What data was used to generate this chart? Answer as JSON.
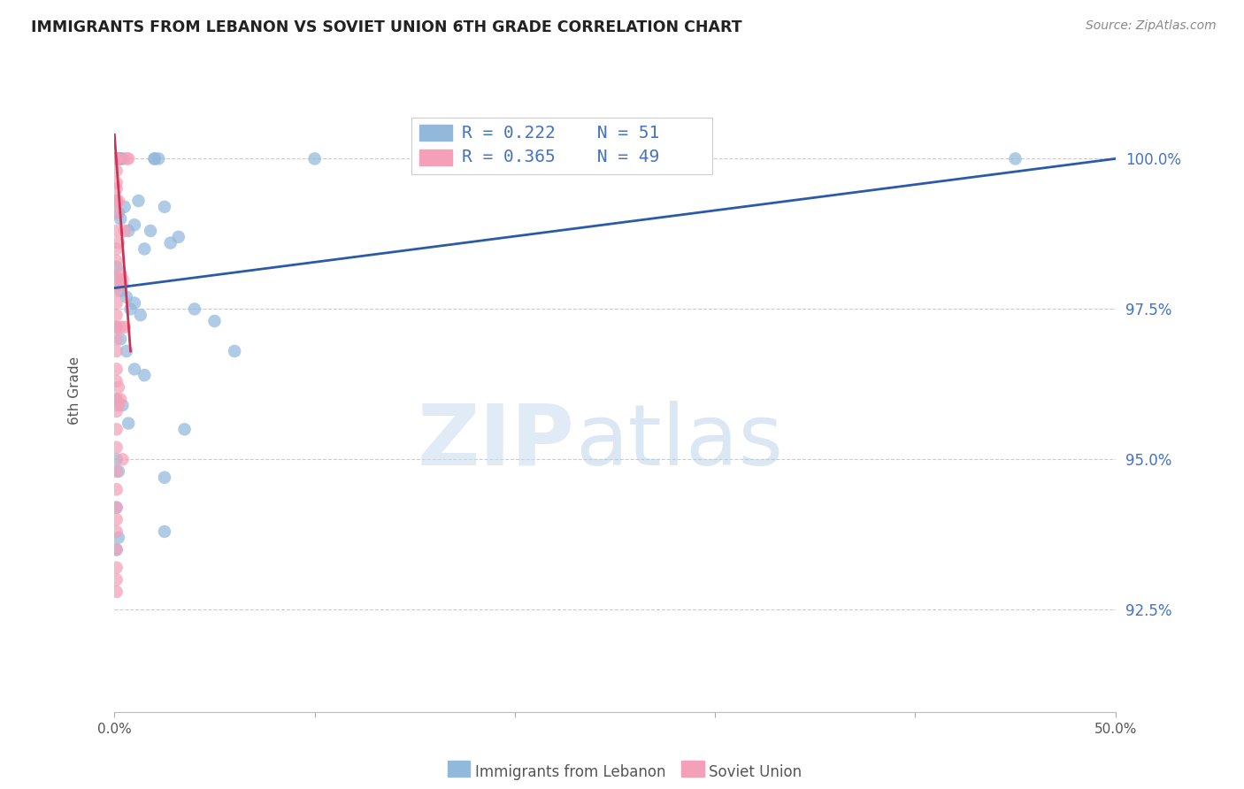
{
  "title": "IMMIGRANTS FROM LEBANON VS SOVIET UNION 6TH GRADE CORRELATION CHART",
  "source": "Source: ZipAtlas.com",
  "ylabel": "6th Grade",
  "yticks": [
    92.5,
    95.0,
    97.5,
    100.0
  ],
  "ytick_labels": [
    "92.5%",
    "95.0%",
    "97.5%",
    "100.0%"
  ],
  "xmin": 0.0,
  "xmax": 0.5,
  "ymin": 90.8,
  "ymax": 101.5,
  "blue_color": "#92B8DC",
  "pink_color": "#F4A0B8",
  "trendline_blue_color": "#2B5BA8",
  "trendline_pink_color": "#CC3355",
  "watermark_zip_color": "#C8DCF0",
  "watermark_atlas_color": "#B0CCE8",
  "legend_blue_text": "R = 0.222    N = 51",
  "legend_pink_text": "R = 0.365    N = 49",
  "legend_r_blue": "R = 0.222",
  "legend_n_blue": "N = 51",
  "legend_r_pink": "R = 0.365",
  "legend_n_pink": "N = 49",
  "blue_scatter_x": [
    0.001,
    0.001,
    0.002,
    0.002,
    0.003,
    0.003,
    0.004,
    0.02,
    0.02,
    0.022,
    0.1,
    0.001,
    0.002,
    0.003,
    0.005,
    0.007,
    0.01,
    0.012,
    0.015,
    0.018,
    0.025,
    0.028,
    0.032,
    0.001,
    0.002,
    0.003,
    0.004,
    0.006,
    0.008,
    0.01,
    0.013,
    0.04,
    0.05,
    0.001,
    0.003,
    0.006,
    0.01,
    0.015,
    0.06,
    0.001,
    0.004,
    0.007,
    0.035,
    0.001,
    0.002,
    0.001,
    0.002,
    0.001,
    0.025,
    0.025,
    0.45
  ],
  "blue_scatter_y": [
    100.0,
    100.0,
    100.0,
    100.0,
    100.0,
    100.0,
    100.0,
    100.0,
    100.0,
    100.0,
    100.0,
    99.3,
    99.1,
    99.0,
    99.2,
    98.8,
    98.9,
    99.3,
    98.5,
    98.8,
    99.2,
    98.6,
    98.7,
    98.2,
    98.0,
    97.8,
    97.9,
    97.7,
    97.5,
    97.6,
    97.4,
    97.5,
    97.3,
    97.2,
    97.0,
    96.8,
    96.5,
    96.4,
    96.8,
    96.0,
    95.9,
    95.6,
    95.5,
    95.0,
    94.8,
    94.2,
    93.7,
    93.5,
    93.8,
    94.7,
    100.0
  ],
  "pink_scatter_x": [
    0.001,
    0.001,
    0.001,
    0.001,
    0.001,
    0.001,
    0.001,
    0.001,
    0.001,
    0.001,
    0.001,
    0.001,
    0.001,
    0.001,
    0.001,
    0.001,
    0.001,
    0.001,
    0.001,
    0.001,
    0.001,
    0.001,
    0.001,
    0.001,
    0.001,
    0.001,
    0.001,
    0.001,
    0.001,
    0.001,
    0.001,
    0.001,
    0.001,
    0.001,
    0.001,
    0.002,
    0.002,
    0.002,
    0.002,
    0.002,
    0.003,
    0.003,
    0.003,
    0.004,
    0.004,
    0.005,
    0.005,
    0.006,
    0.007
  ],
  "pink_scatter_y": [
    100.0,
    100.0,
    100.0,
    100.0,
    100.0,
    99.8,
    99.5,
    99.3,
    99.1,
    98.8,
    98.5,
    98.3,
    98.0,
    97.8,
    97.6,
    97.4,
    97.2,
    97.0,
    96.8,
    96.5,
    96.3,
    96.0,
    95.8,
    95.5,
    95.2,
    94.8,
    94.5,
    94.2,
    94.0,
    93.8,
    93.5,
    93.2,
    93.0,
    92.8,
    99.6,
    99.3,
    98.6,
    97.9,
    96.2,
    95.9,
    98.1,
    97.2,
    96.0,
    98.0,
    95.0,
    98.8,
    97.2,
    100.0,
    100.0
  ],
  "blue_trend_x": [
    0.0,
    0.5
  ],
  "blue_trend_y": [
    97.85,
    100.0
  ],
  "pink_trend_x": [
    0.0,
    0.008
  ],
  "pink_trend_y": [
    100.4,
    96.8
  ],
  "bottom_legend_blue": "Immigrants from Lebanon",
  "bottom_legend_pink": "Soviet Union",
  "scatter_size": 110,
  "scatter_alpha": 0.72
}
